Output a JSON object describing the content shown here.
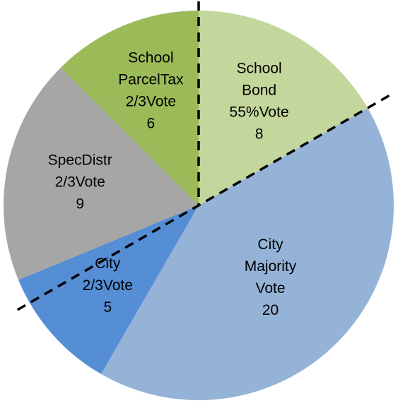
{
  "chart_data": {
    "type": "pie",
    "start_angle_deg": 0,
    "direction": "clockwise",
    "slices": [
      {
        "name": "School Bond 55%Vote",
        "value": 8,
        "color": "#c3d69b",
        "label_lines": [
          "School",
          "Bond",
          "55%Vote",
          "8"
        ]
      },
      {
        "name": "City Majority Vote",
        "value": 20,
        "color": "#95b3d7",
        "label_lines": [
          "City",
          "Majority",
          "Vote",
          "20"
        ]
      },
      {
        "name": "City 2/3Vote",
        "value": 5,
        "color": "#558ed5",
        "label_lines": [
          "City",
          "2/3Vote",
          "5"
        ]
      },
      {
        "name": "SpecDistr 2/3Vote",
        "value": 9,
        "color": "#a6a6a6",
        "label_lines": [
          "SpecDistr",
          "2/3Vote",
          "9"
        ]
      },
      {
        "name": "School ParcelTax 2/3Vote",
        "value": 6,
        "color": "#9bbb59",
        "label_lines": [
          "School",
          "ParcelTax",
          "2/3Vote",
          "6"
        ]
      }
    ],
    "divider_lines": "dashed black lines separating school measures from city and district measures"
  }
}
